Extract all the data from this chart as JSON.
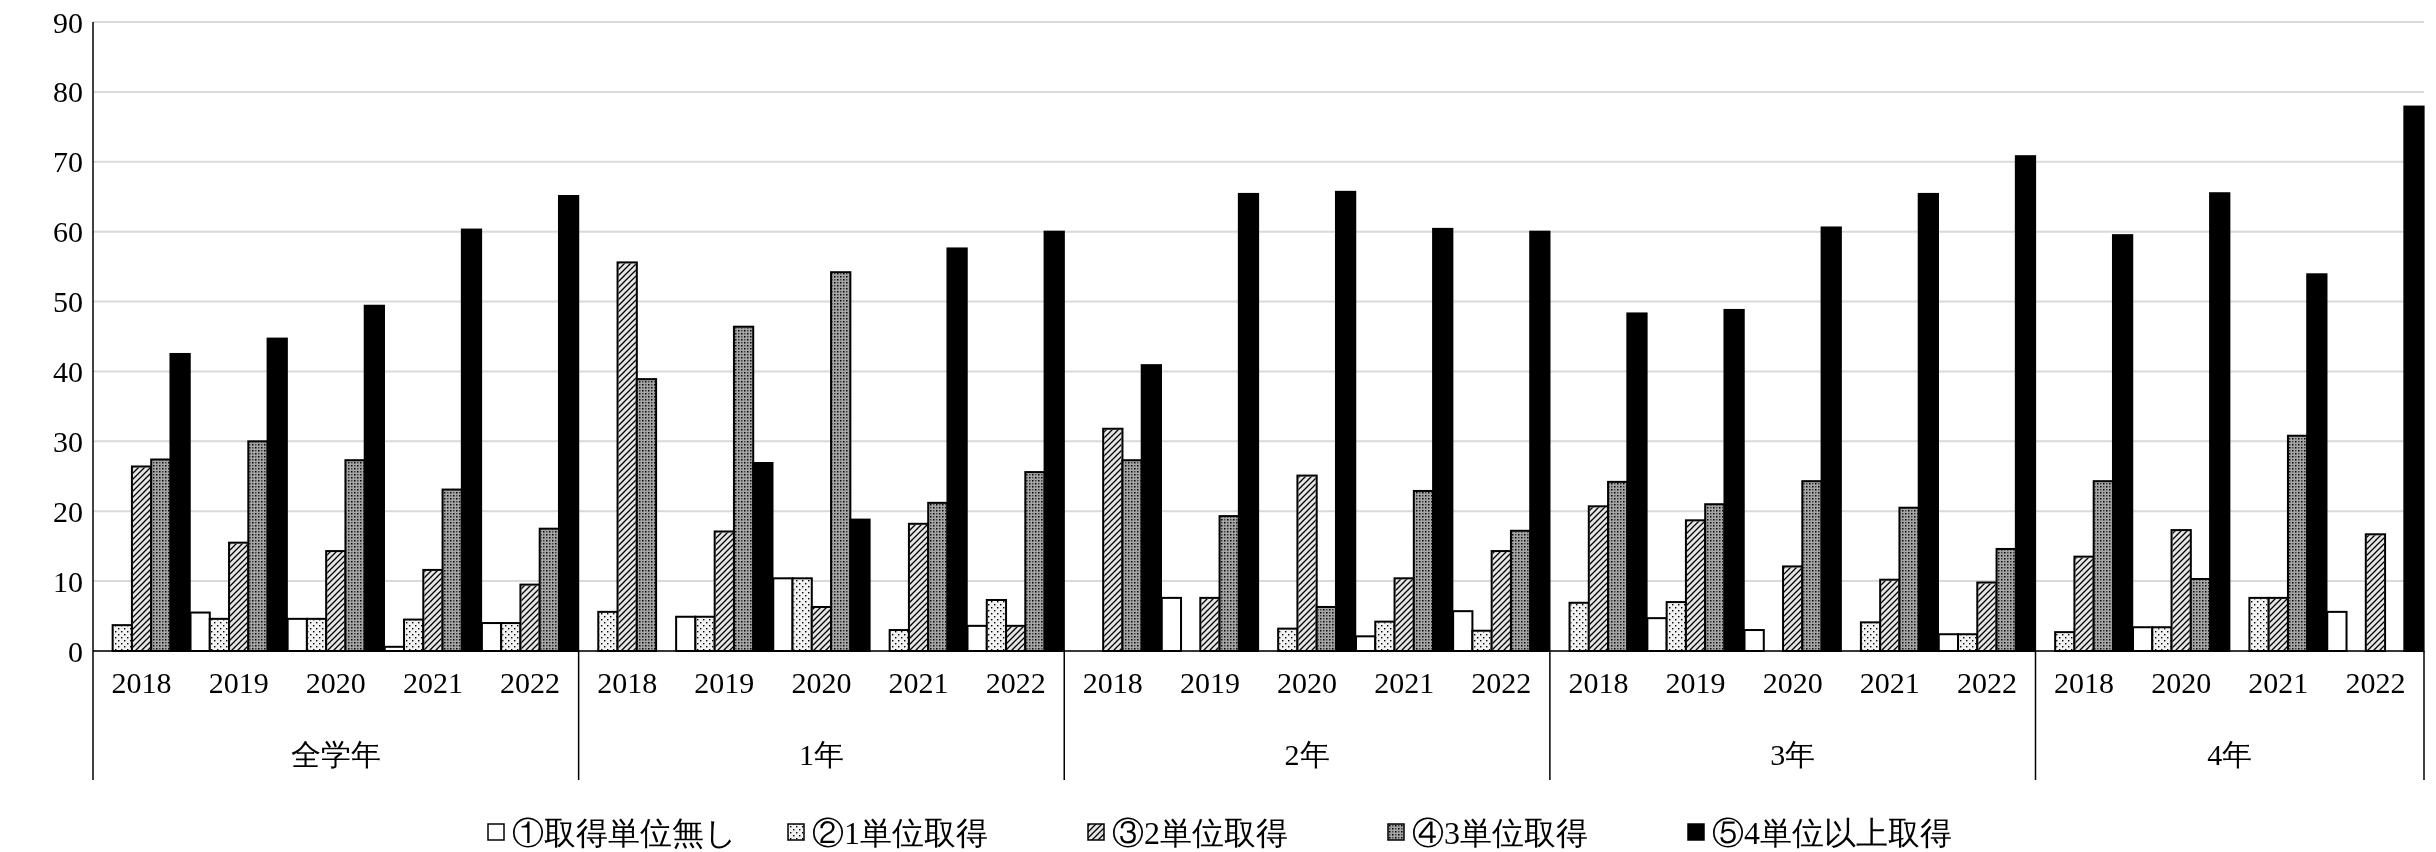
{
  "chart_data": {
    "type": "bar",
    "categories": [
      "2018",
      "2019",
      "2020",
      "2021",
      "2022",
      "2018",
      "2019",
      "2020",
      "2021",
      "2022",
      "2018",
      "2019",
      "2020",
      "2021",
      "2022",
      "2018",
      "2019",
      "2020",
      "2021",
      "2022",
      "2018",
      "2020",
      "2021",
      "2022"
    ],
    "annotations": [
      "全学年",
      "1年",
      "2年",
      "3年",
      "4年"
    ],
    "series": [
      {
        "name": "①取得単位無し",
        "color": "#ffffff",
        "values": [
          0,
          5.5,
          4.6,
          0.6,
          4.0,
          0,
          4.9,
          10.4,
          0,
          3.6,
          0,
          7.6,
          0,
          2.1,
          5.7,
          0,
          4.7,
          3.0,
          0,
          2.4,
          0,
          3.4,
          0,
          5.6
        ]
      },
      {
        "name": "②1単位取得",
        "color": "#f2f2f2",
        "values": [
          3.7,
          4.6,
          4.6,
          4.5,
          4.0,
          5.6,
          4.9,
          10.4,
          3.0,
          7.3,
          0,
          0,
          3.2,
          4.2,
          2.9,
          6.9,
          7.0,
          0,
          4.1,
          2.4,
          2.7,
          3.4,
          7.6,
          0
        ]
      },
      {
        "name": "③2単位取得",
        "color": "#e6e6e6",
        "values": [
          26.4,
          15.5,
          14.3,
          11.6,
          9.5,
          55.6,
          17.1,
          6.3,
          18.2,
          3.6,
          31.8,
          7.6,
          25.1,
          10.4,
          14.3,
          20.7,
          18.7,
          12.1,
          10.2,
          9.8,
          13.5,
          17.3,
          7.6,
          16.7
        ]
      },
      {
        "name": "④3単位取得",
        "color": "#a6a6a6",
        "values": [
          27.4,
          30.0,
          27.3,
          23.1,
          17.5,
          38.9,
          46.4,
          54.2,
          21.2,
          25.6,
          27.3,
          19.3,
          6.3,
          22.9,
          17.2,
          24.2,
          21.0,
          24.3,
          20.5,
          14.6,
          24.3,
          10.3,
          30.8,
          0
        ]
      },
      {
        "name": "⑤4単位以上取得",
        "color": "#000000",
        "values": [
          42.5,
          44.7,
          49.4,
          60.3,
          65.1,
          0,
          26.9,
          18.8,
          57.6,
          60.0,
          40.9,
          65.4,
          65.7,
          60.4,
          60.0,
          48.3,
          48.8,
          60.6,
          65.4,
          70.8,
          59.5,
          65.5,
          53.9,
          77.9
        ]
      }
    ],
    "ylim": [
      0,
      90
    ],
    "yticks": [
      0,
      10,
      20,
      30,
      40,
      50,
      60,
      70,
      80,
      90
    ],
    "grid": "y",
    "legend": "bottom"
  }
}
